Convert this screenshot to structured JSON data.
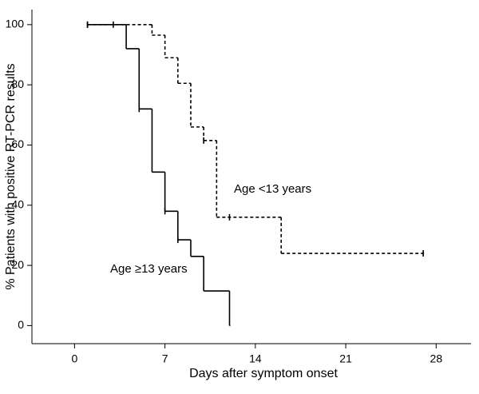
{
  "chart_data": {
    "type": "step",
    "x_label": "Days after symptom onset",
    "y_label": "% Patients with positive RT-PCR results",
    "xlim": [
      -3.3,
      30.7
    ],
    "ylim": [
      -6,
      105
    ],
    "xticks": [
      0,
      7,
      14,
      21,
      28
    ],
    "yticks": [
      0,
      20,
      40,
      60,
      80,
      100
    ],
    "series": [
      {
        "name": "Age <13 years",
        "color": "#000000",
        "dash": true,
        "x": [
          1,
          6,
          7,
          8,
          9,
          10,
          11,
          16,
          27
        ],
        "values": [
          100,
          96.5,
          89,
          80.5,
          66,
          61.5,
          36,
          24,
          24
        ],
        "censored": {
          "x": [
            1,
            10,
            12,
            27
          ],
          "values": [
            100,
            61.5,
            36,
            24
          ]
        }
      },
      {
        "name": "Age ≥13 years",
        "color": "#000000",
        "dash": false,
        "x": [
          1,
          4,
          5,
          6,
          7,
          8,
          9,
          10,
          12
        ],
        "values": [
          100,
          92,
          72,
          51,
          38,
          28.5,
          23,
          11.5,
          0
        ],
        "censored": {
          "x": [
            1,
            3,
            5,
            7,
            8
          ],
          "values": [
            100,
            100,
            72,
            38,
            28.5
          ]
        }
      }
    ]
  }
}
